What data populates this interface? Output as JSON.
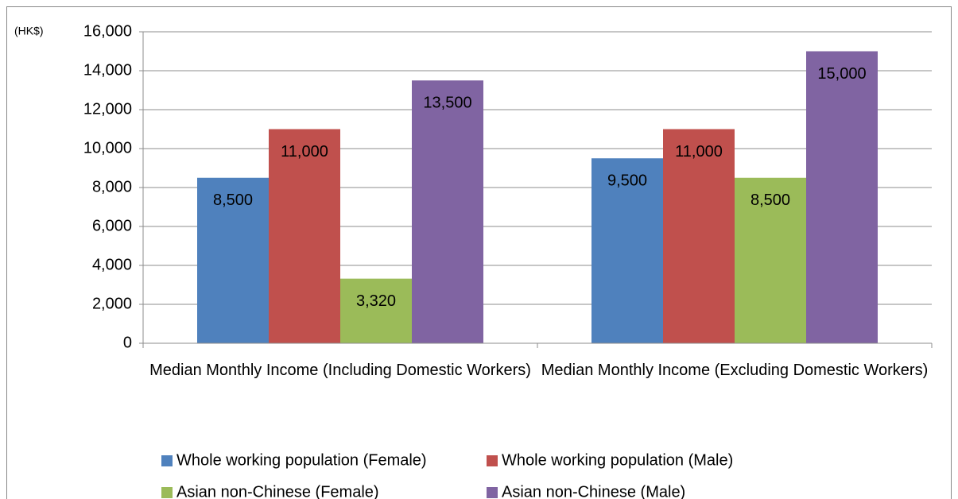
{
  "chart_data": {
    "type": "bar",
    "y_label": "(HK$)",
    "categories": [
      "Median Monthly Income (Including Domestic Workers)",
      "Median Monthly Income (Excluding Domestic Workers)"
    ],
    "series": [
      {
        "name": "Whole working population (Female)",
        "color": "#4f81bd",
        "values": [
          8500,
          9500
        ],
        "value_labels": [
          "8,500",
          "9,500"
        ]
      },
      {
        "name": "Whole working population (Male)",
        "color": "#c0504d",
        "values": [
          11000,
          11000
        ],
        "value_labels": [
          "11,000",
          "11,000"
        ]
      },
      {
        "name": "Asian non-Chinese (Female)",
        "color": "#9bbb59",
        "values": [
          3320,
          8500
        ],
        "value_labels": [
          "3,320",
          "8,500"
        ]
      },
      {
        "name": "Asian non-Chinese (Male)",
        "color": "#8064a2",
        "values": [
          13500,
          15000
        ],
        "value_labels": [
          "13,500",
          "15,000"
        ]
      }
    ],
    "ylim": [
      0,
      16000
    ],
    "yticks": [
      0,
      {
        "value": 2000,
        "label": "2,000"
      },
      {
        "value": 4000,
        "label": "4,000"
      },
      {
        "value": 6000,
        "label": "6,000"
      },
      {
        "value": 8000,
        "label": "8,000"
      },
      {
        "value": 10000,
        "label": "10,000"
      },
      {
        "value": 12000,
        "label": "12,000"
      },
      {
        "value": 14000,
        "label": "14,000"
      },
      {
        "value": 16000,
        "label": "16,000"
      }
    ],
    "grid": true,
    "legend": "bottom"
  }
}
